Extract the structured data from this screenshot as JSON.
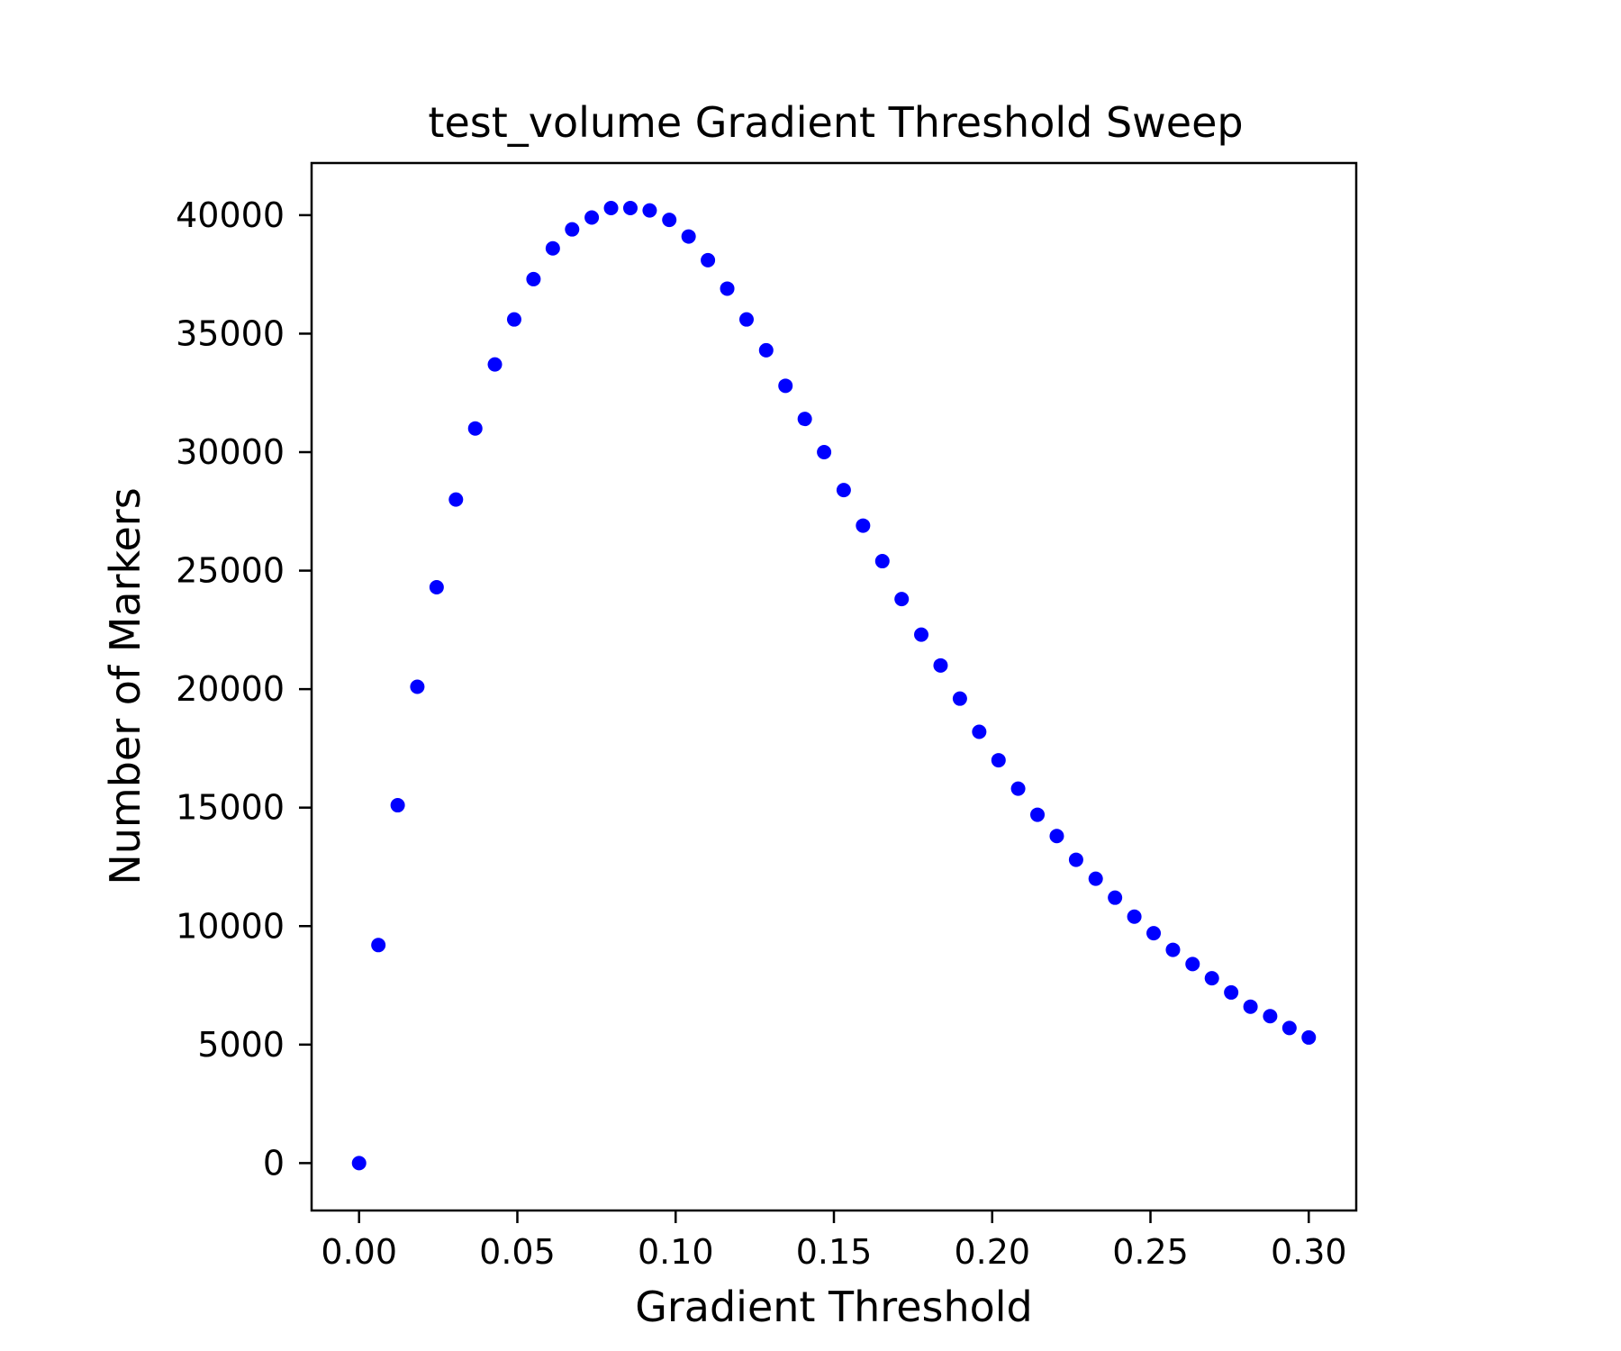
{
  "chart_data": {
    "type": "scatter",
    "title": "test_volume Gradient Threshold Sweep",
    "xlabel": "Gradient Threshold",
    "ylabel": "Number of Markers",
    "xlim": [
      -0.015,
      0.315
    ],
    "ylim": [
      -2000,
      42200
    ],
    "xticks": [
      "0.00",
      "0.05",
      "0.10",
      "0.15",
      "0.20",
      "0.25",
      "0.30"
    ],
    "xtick_values": [
      0,
      0.05,
      0.1,
      0.15,
      0.2,
      0.25,
      0.3
    ],
    "yticks": [
      "0",
      "5000",
      "10000",
      "15000",
      "20000",
      "25000",
      "30000",
      "35000",
      "40000"
    ],
    "ytick_values": [
      0,
      5000,
      10000,
      15000,
      20000,
      25000,
      30000,
      35000,
      40000
    ],
    "grid": false,
    "marker_color": "#0000ff",
    "series": [
      {
        "x": [
          0.0,
          0.0061,
          0.0122,
          0.0184,
          0.0245,
          0.0306,
          0.0367,
          0.0429,
          0.049,
          0.0551,
          0.0612,
          0.0673,
          0.0735,
          0.0796,
          0.0857,
          0.0918,
          0.098,
          0.1041,
          0.1102,
          0.1163,
          0.1224,
          0.1286,
          0.1347,
          0.1408,
          0.1469,
          0.1531,
          0.1592,
          0.1653,
          0.1714,
          0.1776,
          0.1837,
          0.1898,
          0.1959,
          0.202,
          0.2082,
          0.2143,
          0.2204,
          0.2265,
          0.2327,
          0.2388,
          0.2449,
          0.251,
          0.2571,
          0.2633,
          0.2694,
          0.2755,
          0.2816,
          0.2878,
          0.2939,
          0.3
        ],
        "y": [
          0,
          9200,
          15100,
          20100,
          24300,
          28000,
          31000,
          33700,
          35600,
          37300,
          38600,
          39400,
          39900,
          40300,
          40300,
          40200,
          39800,
          39100,
          38100,
          36900,
          35600,
          34300,
          32800,
          31400,
          30000,
          28400,
          26900,
          25400,
          23800,
          22300,
          21000,
          19600,
          18200,
          17000,
          15800,
          14700,
          13800,
          12800,
          12000,
          11200,
          10400,
          9700,
          9000,
          8400,
          7800,
          7200,
          6600,
          6200,
          5700,
          5300
        ]
      }
    ]
  }
}
